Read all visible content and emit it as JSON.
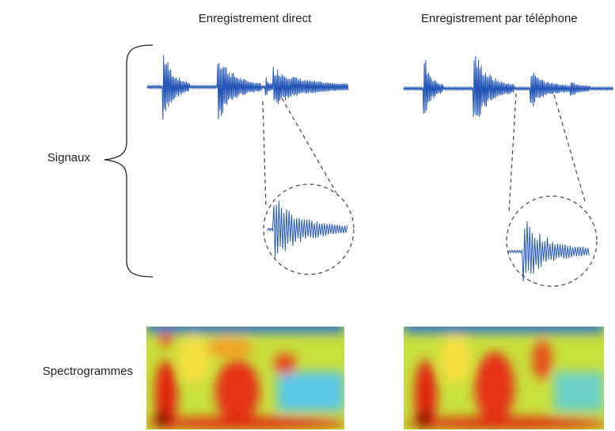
{
  "titles": {
    "direct": "Enregistrement direct",
    "telephone": "Enregistrement par téléphone"
  },
  "labels": {
    "signals": "Signaux",
    "spectrograms": "Spectrogrammes"
  }
}
